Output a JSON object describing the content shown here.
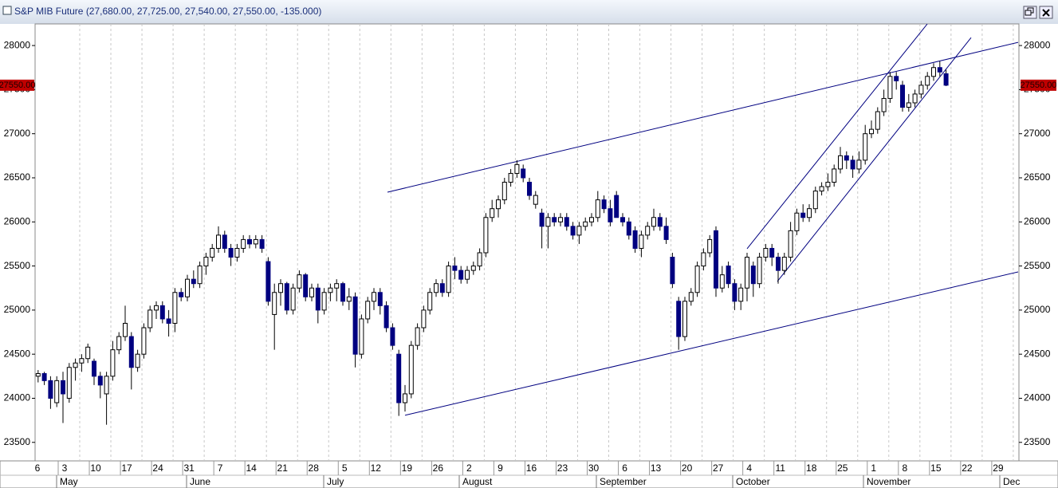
{
  "chart_data": {
    "type": "candlestick",
    "title": "S&P MIB Future (27,680.00, 27,725.00, 27,540.00, 27,550.00, -135.000)",
    "up_color": "#ffffff",
    "down_color": "#000080",
    "ylim": [
      23290,
      28245
    ],
    "yticks": [
      23500,
      24000,
      24500,
      25000,
      25500,
      26000,
      26500,
      27000,
      27500,
      28000
    ],
    "xtick_labels": [
      "6",
      "3",
      "10",
      "17",
      "24",
      "31",
      "7",
      "14",
      "21",
      "28",
      "5",
      "12",
      "19",
      "26",
      "2",
      "9",
      "16",
      "23",
      "30",
      "6",
      "13",
      "20",
      "27",
      "4",
      "11",
      "18",
      "25",
      "1",
      "8",
      "15",
      "22",
      "29"
    ],
    "month_labels": [
      "May",
      "June",
      "July",
      "August",
      "September",
      "October",
      "November",
      "Dec"
    ],
    "last_price": 27550,
    "last_price_label": "27550.00",
    "trendlines": [
      [
        26337,
        28036
      ],
      [
        23807,
        25433
      ],
      [
        25696,
        28244
      ],
      [
        25325,
        28090
      ]
    ],
    "ohlc": [
      [
        24250,
        24320,
        24180,
        24280
      ],
      [
        24280,
        24300,
        24150,
        24200
      ],
      [
        24200,
        24250,
        23880,
        24000
      ],
      [
        23950,
        24250,
        23900,
        24200
      ],
      [
        24200,
        24300,
        23720,
        24050
      ],
      [
        24000,
        24400,
        23950,
        24350
      ],
      [
        24350,
        24450,
        24200,
        24400
      ],
      [
        24400,
        24500,
        24300,
        24450
      ],
      [
        24450,
        24620,
        24400,
        24580
      ],
      [
        24420,
        24450,
        24150,
        24250
      ],
      [
        24250,
        24300,
        24000,
        24150
      ],
      [
        24050,
        24300,
        23700,
        24250
      ],
      [
        24250,
        24650,
        24200,
        24550
      ],
      [
        24550,
        24750,
        24500,
        24700
      ],
      [
        24700,
        25050,
        24650,
        24850
      ],
      [
        24700,
        24750,
        24100,
        24350
      ],
      [
        24350,
        24550,
        24300,
        24500
      ],
      [
        24500,
        24850,
        24450,
        24800
      ],
      [
        24800,
        25050,
        24750,
        25000
      ],
      [
        25000,
        25100,
        24900,
        25050
      ],
      [
        25050,
        25100,
        24850,
        24900
      ],
      [
        24900,
        25000,
        24700,
        24850
      ],
      [
        24850,
        25250,
        24750,
        25200
      ],
      [
        25200,
        25250,
        25100,
        25150
      ],
      [
        25150,
        25400,
        25100,
        25350
      ],
      [
        25350,
        25450,
        25250,
        25300
      ],
      [
        25300,
        25550,
        25250,
        25500
      ],
      [
        25500,
        25650,
        25400,
        25600
      ],
      [
        25600,
        25750,
        25550,
        25700
      ],
      [
        25700,
        25950,
        25650,
        25850
      ],
      [
        25850,
        25900,
        25650,
        25700
      ],
      [
        25700,
        25750,
        25500,
        25600
      ],
      [
        25600,
        25750,
        25550,
        25700
      ],
      [
        25700,
        25850,
        25650,
        25800
      ],
      [
        25800,
        25850,
        25700,
        25750
      ],
      [
        25750,
        25850,
        25700,
        25800
      ],
      [
        25800,
        25850,
        25650,
        25700
      ],
      [
        25550,
        25600,
        25050,
        25100
      ],
      [
        24950,
        25300,
        24550,
        25200
      ],
      [
        25200,
        25350,
        25050,
        25300
      ],
      [
        25300,
        25320,
        24950,
        25000
      ],
      [
        25000,
        25300,
        24950,
        25250
      ],
      [
        25250,
        25450,
        25200,
        25400
      ],
      [
        25400,
        25420,
        25100,
        25150
      ],
      [
        25150,
        25300,
        25100,
        25250
      ],
      [
        25250,
        25300,
        24850,
        25000
      ],
      [
        25000,
        25250,
        24950,
        25200
      ],
      [
        25200,
        25300,
        25100,
        25250
      ],
      [
        25250,
        25350,
        25100,
        25300
      ],
      [
        25300,
        25320,
        25050,
        25100
      ],
      [
        25100,
        25250,
        25000,
        25150
      ],
      [
        25150,
        25200,
        24350,
        24500
      ],
      [
        24500,
        24950,
        24450,
        24900
      ],
      [
        24900,
        25150,
        24850,
        25100
      ],
      [
        25100,
        25250,
        25000,
        25200
      ],
      [
        25200,
        25250,
        24950,
        25050
      ],
      [
        25050,
        25100,
        24750,
        24800
      ],
      [
        24800,
        24850,
        24550,
        24600
      ],
      [
        24500,
        24550,
        23800,
        23950
      ],
      [
        23950,
        24150,
        23850,
        24050
      ],
      [
        24050,
        24650,
        24000,
        24600
      ],
      [
        24600,
        24850,
        24550,
        24800
      ],
      [
        24800,
        25050,
        24750,
        25000
      ],
      [
        25000,
        25250,
        24950,
        25200
      ],
      [
        25200,
        25350,
        25150,
        25300
      ],
      [
        25300,
        25350,
        25150,
        25200
      ],
      [
        25200,
        25550,
        25150,
        25500
      ],
      [
        25500,
        25600,
        25350,
        25450
      ],
      [
        25450,
        25500,
        25300,
        25350
      ],
      [
        25350,
        25500,
        25300,
        25450
      ],
      [
        25450,
        25550,
        25400,
        25500
      ],
      [
        25500,
        25700,
        25450,
        25650
      ],
      [
        25650,
        26100,
        25600,
        26050
      ],
      [
        26050,
        26250,
        26000,
        26150
      ],
      [
        26150,
        26300,
        26050,
        26250
      ],
      [
        26250,
        26500,
        26200,
        26450
      ],
      [
        26450,
        26600,
        26400,
        26550
      ],
      [
        26550,
        26700,
        26500,
        26650
      ],
      [
        26600,
        26650,
        26450,
        26500
      ],
      [
        26450,
        26500,
        26250,
        26300
      ],
      [
        26200,
        26350,
        26150,
        26300
      ],
      [
        26100,
        26150,
        25700,
        25950
      ],
      [
        25950,
        26100,
        25700,
        26050
      ],
      [
        26050,
        26100,
        25950,
        26000
      ],
      [
        26000,
        26100,
        25950,
        26050
      ],
      [
        26050,
        26100,
        25900,
        25950
      ],
      [
        25950,
        26000,
        25800,
        25850
      ],
      [
        25850,
        26000,
        25750,
        25950
      ],
      [
        25950,
        26050,
        25900,
        26000
      ],
      [
        26000,
        26100,
        25950,
        26050
      ],
      [
        26050,
        26350,
        26000,
        26250
      ],
      [
        26250,
        26300,
        26100,
        26150
      ],
      [
        26150,
        26250,
        25950,
        26000
      ],
      [
        26300,
        26350,
        26050,
        26050
      ],
      [
        26050,
        26100,
        25950,
        26000
      ],
      [
        26000,
        26050,
        25800,
        25850
      ],
      [
        25900,
        25950,
        25650,
        25700
      ],
      [
        25700,
        25900,
        25600,
        25850
      ],
      [
        25850,
        26000,
        25800,
        25950
      ],
      [
        25950,
        26150,
        25900,
        26050
      ],
      [
        26050,
        26100,
        25900,
        25950
      ],
      [
        25950,
        26050,
        25750,
        25800
      ],
      [
        25600,
        25650,
        25250,
        25300
      ],
      [
        25100,
        25150,
        24550,
        24700
      ],
      [
        24700,
        25150,
        24650,
        25100
      ],
      [
        25100,
        25250,
        25050,
        25200
      ],
      [
        25200,
        25550,
        25150,
        25500
      ],
      [
        25500,
        25700,
        25450,
        25650
      ],
      [
        25650,
        25850,
        25600,
        25800
      ],
      [
        25900,
        25950,
        25150,
        25250
      ],
      [
        25250,
        25500,
        25200,
        25400
      ],
      [
        25500,
        25550,
        25250,
        25300
      ],
      [
        25300,
        25350,
        25000,
        25100
      ],
      [
        25100,
        25300,
        25000,
        25250
      ],
      [
        25250,
        25650,
        25100,
        25600
      ],
      [
        25500,
        25550,
        25150,
        25300
      ],
      [
        25300,
        25650,
        25250,
        25600
      ],
      [
        25600,
        25750,
        25550,
        25700
      ],
      [
        25700,
        25750,
        25500,
        25600
      ],
      [
        25600,
        25650,
        25300,
        25450
      ],
      [
        25450,
        25650,
        25400,
        25600
      ],
      [
        25600,
        26000,
        25550,
        25900
      ],
      [
        25900,
        26150,
        25850,
        26100
      ],
      [
        26100,
        26200,
        26000,
        26050
      ],
      [
        26050,
        26200,
        26000,
        26150
      ],
      [
        26150,
        26400,
        26100,
        26350
      ],
      [
        26350,
        26450,
        26300,
        26400
      ],
      [
        26400,
        26550,
        26350,
        26450
      ],
      [
        26450,
        26650,
        26400,
        26600
      ],
      [
        26600,
        26850,
        26550,
        26750
      ],
      [
        26750,
        26800,
        26600,
        26700
      ],
      [
        26700,
        26750,
        26500,
        26600
      ],
      [
        26600,
        26800,
        26550,
        26700
      ],
      [
        26700,
        27100,
        26650,
        27000
      ],
      [
        27000,
        27150,
        26950,
        27050
      ],
      [
        27050,
        27300,
        27000,
        27250
      ],
      [
        27250,
        27500,
        27200,
        27400
      ],
      [
        27400,
        27700,
        27350,
        27650
      ],
      [
        27650,
        27700,
        27500,
        27600
      ],
      [
        27550,
        27600,
        27250,
        27300
      ],
      [
        27300,
        27450,
        27250,
        27350
      ],
      [
        27350,
        27500,
        27300,
        27450
      ],
      [
        27450,
        27600,
        27400,
        27550
      ],
      [
        27550,
        27700,
        27500,
        27650
      ],
      [
        27650,
        27800,
        27600,
        27750
      ],
      [
        27750,
        27820,
        27650,
        27700
      ],
      [
        27680,
        27725,
        27540,
        27550
      ]
    ]
  }
}
